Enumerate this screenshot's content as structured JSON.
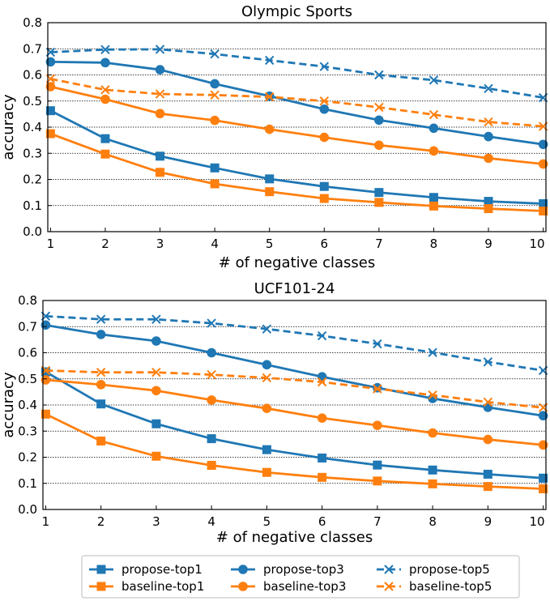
{
  "chart_data": [
    {
      "type": "line",
      "title": "Olympic Sports",
      "xlabel": "# of negative classes",
      "ylabel": "accuracy",
      "x": [
        1,
        2,
        3,
        4,
        5,
        6,
        7,
        8,
        9,
        10
      ],
      "xlim": [
        0.95,
        10.05
      ],
      "ylim": [
        0,
        0.8
      ],
      "yticks": [
        "0.0",
        "0.1",
        "0.2",
        "0.3",
        "0.4",
        "0.5",
        "0.6",
        "0.7",
        "0.8"
      ],
      "grid": "horizontal",
      "series": [
        {
          "name": "propose-top1",
          "color": "#1f77b4",
          "marker": "square",
          "dash": false,
          "values": [
            0.463,
            0.356,
            0.289,
            0.244,
            0.202,
            0.173,
            0.15,
            0.131,
            0.116,
            0.107
          ]
        },
        {
          "name": "baseline-top1",
          "color": "#ff7f0e",
          "marker": "square",
          "dash": false,
          "values": [
            0.375,
            0.297,
            0.227,
            0.183,
            0.153,
            0.127,
            0.112,
            0.098,
            0.088,
            0.079
          ]
        },
        {
          "name": "propose-top3",
          "color": "#1f77b4",
          "marker": "circle",
          "dash": false,
          "values": [
            0.65,
            0.647,
            0.62,
            0.566,
            0.519,
            0.469,
            0.427,
            0.396,
            0.364,
            0.334
          ]
        },
        {
          "name": "baseline-top3",
          "color": "#ff7f0e",
          "marker": "circle",
          "dash": false,
          "values": [
            0.555,
            0.507,
            0.452,
            0.426,
            0.392,
            0.361,
            0.331,
            0.309,
            0.281,
            0.259
          ]
        },
        {
          "name": "propose-top5",
          "color": "#1f77b4",
          "marker": "x",
          "dash": true,
          "values": [
            0.687,
            0.697,
            0.698,
            0.68,
            0.656,
            0.632,
            0.6,
            0.58,
            0.548,
            0.513
          ]
        },
        {
          "name": "baseline-top5",
          "color": "#ff7f0e",
          "marker": "x",
          "dash": true,
          "values": [
            0.585,
            0.543,
            0.527,
            0.523,
            0.516,
            0.5,
            0.476,
            0.448,
            0.42,
            0.403
          ]
        }
      ]
    },
    {
      "type": "line",
      "title": "UCF101-24",
      "xlabel": "# of negative classes",
      "ylabel": "accuracy",
      "x": [
        1,
        2,
        3,
        4,
        5,
        6,
        7,
        8,
        9,
        10
      ],
      "xlim": [
        0.95,
        10.05
      ],
      "ylim": [
        0,
        0.8
      ],
      "yticks": [
        "0.0",
        "0.1",
        "0.2",
        "0.3",
        "0.4",
        "0.5",
        "0.6",
        "0.7",
        "0.8"
      ],
      "grid": "horizontal",
      "series": [
        {
          "name": "propose-top1",
          "color": "#1f77b4",
          "marker": "square",
          "dash": false,
          "values": [
            0.527,
            0.404,
            0.328,
            0.271,
            0.229,
            0.197,
            0.17,
            0.151,
            0.135,
            0.12
          ]
        },
        {
          "name": "baseline-top1",
          "color": "#ff7f0e",
          "marker": "square",
          "dash": false,
          "values": [
            0.365,
            0.262,
            0.204,
            0.169,
            0.142,
            0.123,
            0.109,
            0.098,
            0.088,
            0.079
          ]
        },
        {
          "name": "propose-top3",
          "color": "#1f77b4",
          "marker": "circle",
          "dash": false,
          "values": [
            0.706,
            0.67,
            0.645,
            0.6,
            0.554,
            0.508,
            0.466,
            0.425,
            0.391,
            0.359
          ]
        },
        {
          "name": "baseline-top3",
          "color": "#ff7f0e",
          "marker": "circle",
          "dash": false,
          "values": [
            0.496,
            0.478,
            0.455,
            0.419,
            0.387,
            0.35,
            0.322,
            0.293,
            0.268,
            0.247
          ]
        },
        {
          "name": "propose-top5",
          "color": "#1f77b4",
          "marker": "x",
          "dash": true,
          "values": [
            0.74,
            0.728,
            0.728,
            0.713,
            0.691,
            0.665,
            0.634,
            0.601,
            0.565,
            0.532
          ]
        },
        {
          "name": "baseline-top5",
          "color": "#ff7f0e",
          "marker": "x",
          "dash": true,
          "values": [
            0.532,
            0.525,
            0.525,
            0.516,
            0.504,
            0.488,
            0.462,
            0.438,
            0.411,
            0.39
          ]
        }
      ]
    }
  ],
  "legend": {
    "items": [
      {
        "name": "propose-top1",
        "color": "#1f77b4",
        "marker": "square",
        "dash": false
      },
      {
        "name": "baseline-top1",
        "color": "#ff7f0e",
        "marker": "square",
        "dash": false
      },
      {
        "name": "propose-top3",
        "color": "#1f77b4",
        "marker": "circle",
        "dash": false
      },
      {
        "name": "baseline-top3",
        "color": "#ff7f0e",
        "marker": "circle",
        "dash": false
      },
      {
        "name": "propose-top5",
        "color": "#1f77b4",
        "marker": "x",
        "dash": true
      },
      {
        "name": "baseline-top5",
        "color": "#ff7f0e",
        "marker": "x",
        "dash": true
      }
    ]
  }
}
